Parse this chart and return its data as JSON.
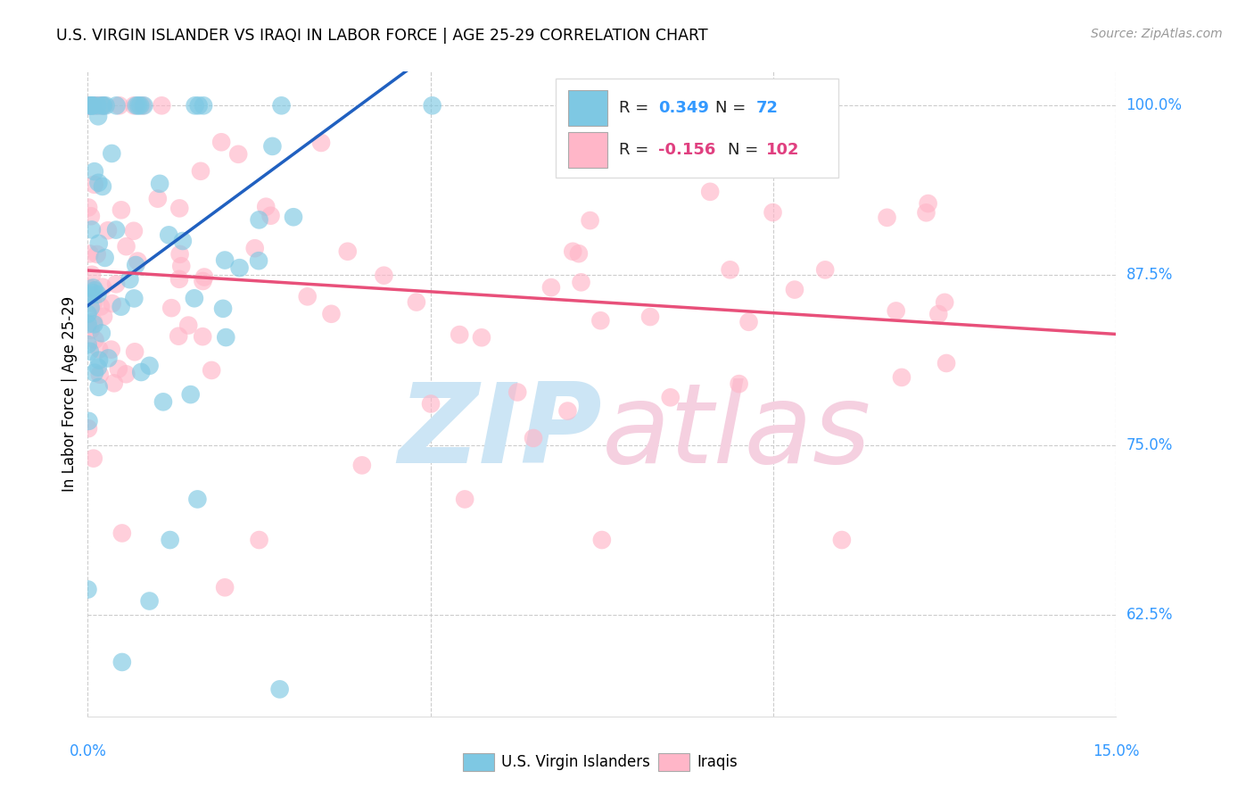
{
  "title": "U.S. VIRGIN ISLANDER VS IRAQI IN LABOR FORCE | AGE 25-29 CORRELATION CHART",
  "source": "Source: ZipAtlas.com",
  "ylabel_label": "In Labor Force | Age 25-29",
  "legend_label_vi": "U.S. Virgin Islanders",
  "legend_label_iq": "Iraqis",
  "R_vi": 0.349,
  "N_vi": 72,
  "R_iq": -0.156,
  "N_iq": 102,
  "color_vi": "#7ec8e3",
  "color_iq": "#ffb6c8",
  "line_color_vi": "#2060c0",
  "line_color_iq": "#e8507a",
  "x_min": 0.0,
  "x_max": 0.15,
  "y_min": 0.55,
  "y_max": 1.025,
  "y_ticks": [
    0.625,
    0.75,
    0.875,
    1.0
  ],
  "y_tick_labels": [
    "62.5%",
    "75.0%",
    "87.5%",
    "100.0%"
  ],
  "x_ticks": [
    0.0,
    0.05,
    0.1,
    0.15
  ],
  "x_tick_labels": [
    "0.0%",
    "",
    "",
    "15.0%"
  ],
  "seed": 7
}
